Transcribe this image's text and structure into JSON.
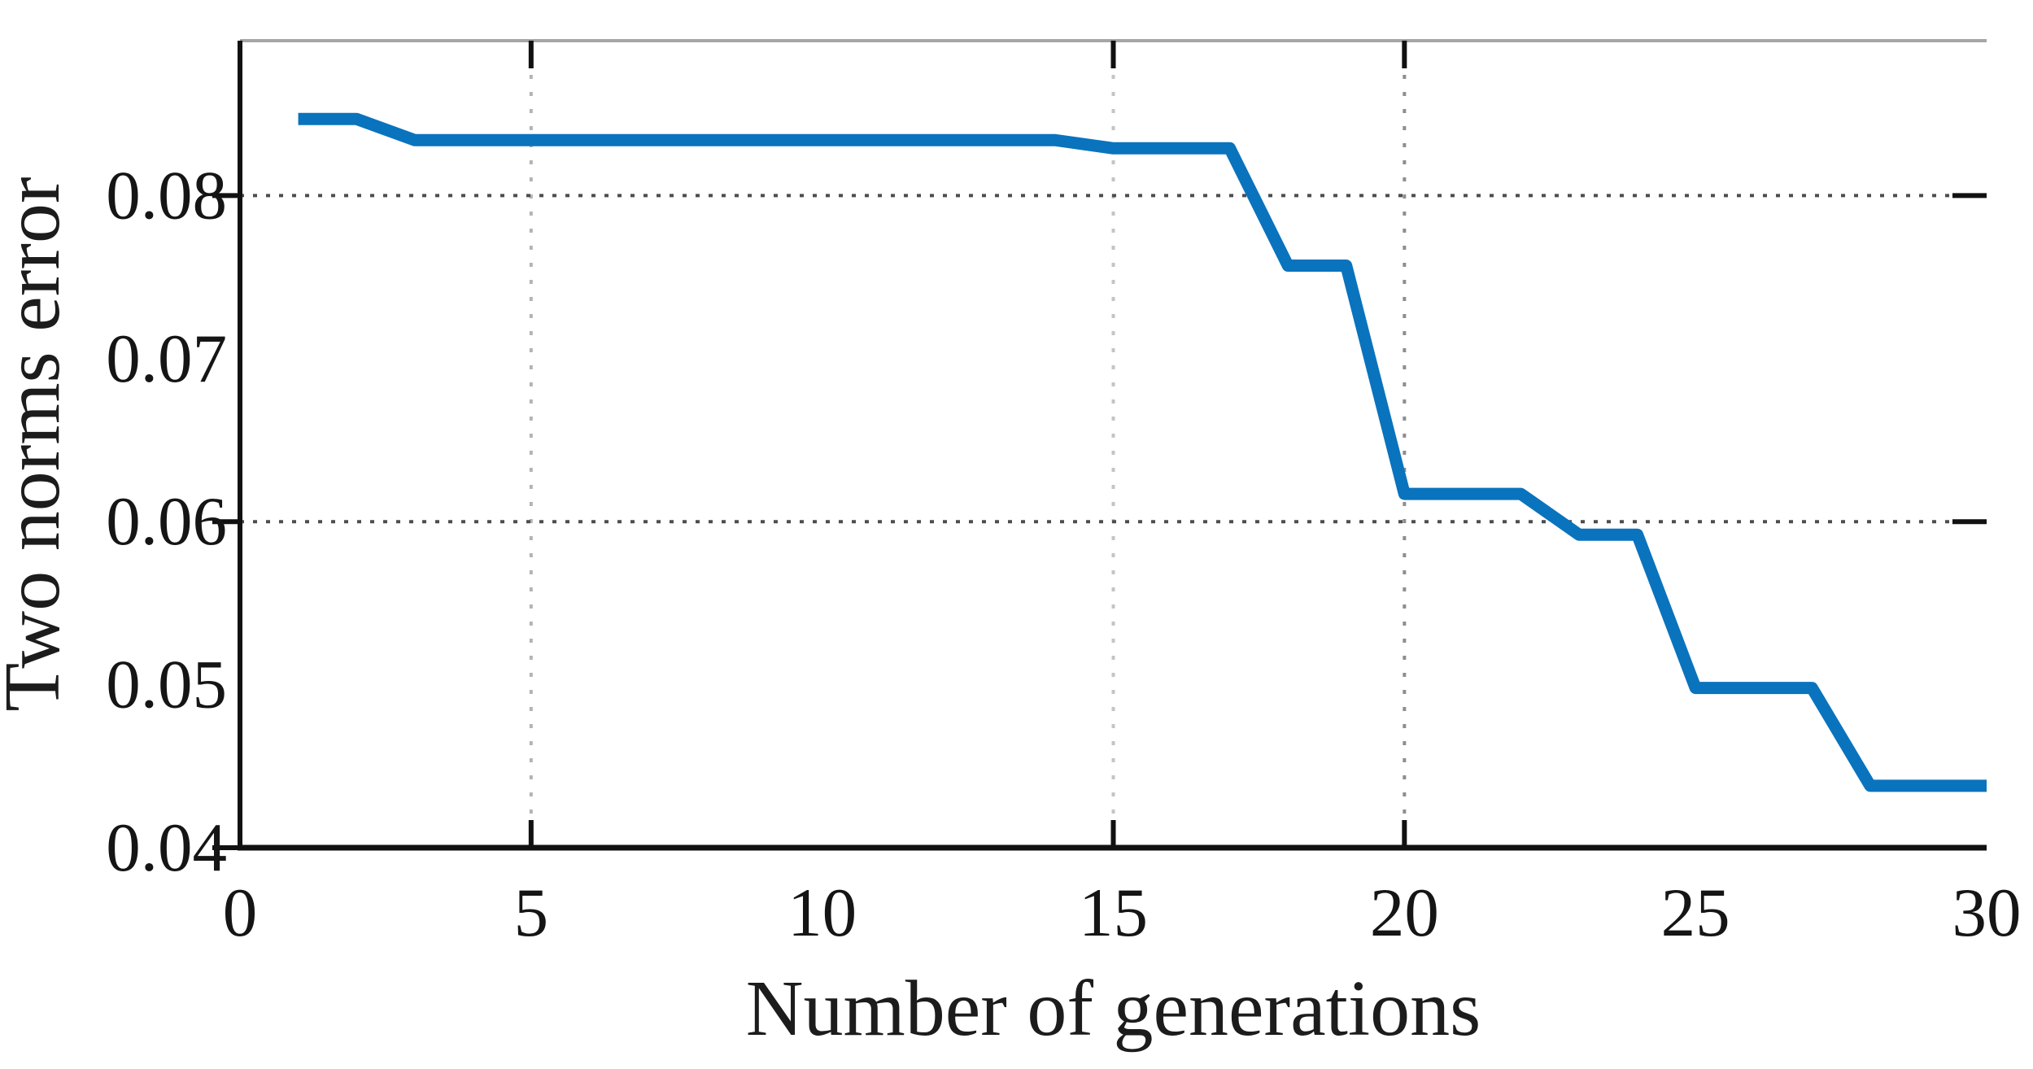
{
  "figure": {
    "xlabel": "Number of generations",
    "ylabel": "Two norms error"
  },
  "chart_data": {
    "type": "line",
    "title": "",
    "xlabel": "Number of generations",
    "ylabel": "Two norms error",
    "xlim": [
      0,
      30
    ],
    "ylim": [
      0.04,
      0.0895
    ],
    "grid": "partial-dotted",
    "legend": "none",
    "x_ticks": [
      0,
      5,
      10,
      15,
      20,
      25,
      30
    ],
    "x_tick_labels": [
      "0",
      "5",
      "10",
      "15",
      "20",
      "25",
      "30"
    ],
    "y_ticks": [
      0.04,
      0.05,
      0.06,
      0.07,
      0.08
    ],
    "y_tick_labels": [
      "0.04",
      "0.05",
      "0.06",
      "0.07",
      "0.08"
    ],
    "x_gridlines": [
      5,
      15,
      20
    ],
    "x_gridline_colors": [
      "#b4b4b4",
      "#c4c4c4",
      "#8e8e8e"
    ],
    "y_gridlines": [
      0.06,
      0.08
    ],
    "y_outer_ticks": [
      0.04,
      0.06,
      0.08
    ],
    "series": [
      {
        "name": "two-norms-error",
        "color": "#0a73bd",
        "x": [
          1,
          2,
          3,
          4,
          5,
          6,
          7,
          8,
          9,
          10,
          11,
          12,
          13,
          14,
          15,
          16,
          17,
          18,
          19,
          20,
          21,
          22,
          23,
          24,
          25,
          26,
          27,
          28,
          29,
          30
        ],
        "y": [
          0.0847,
          0.0847,
          0.0834,
          0.0834,
          0.0834,
          0.0834,
          0.0834,
          0.0834,
          0.0834,
          0.0834,
          0.0834,
          0.0834,
          0.0834,
          0.0834,
          0.0829,
          0.0829,
          0.0829,
          0.0757,
          0.0757,
          0.0617,
          0.0617,
          0.0617,
          0.0592,
          0.0592,
          0.0498,
          0.0498,
          0.0498,
          0.0438,
          0.0438,
          0.0438
        ]
      }
    ],
    "colors": {
      "line": "#0a73bd",
      "h_grid": "#4d4d4d",
      "axis": "#111111",
      "top_spine": "#a6a6a6",
      "text": "#151515"
    }
  }
}
